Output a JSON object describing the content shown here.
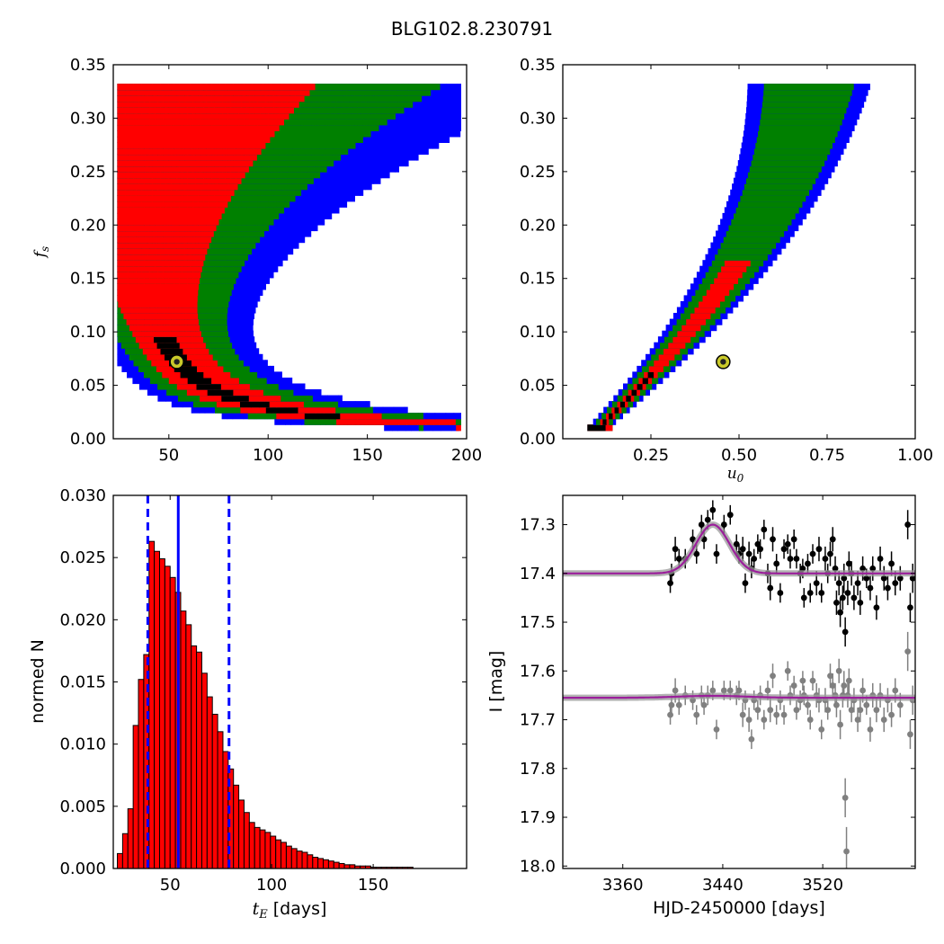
{
  "title": "BLG102.8.230791",
  "colors": {
    "blue": "#0000ff",
    "green": "#008000",
    "red": "#ff0000",
    "black": "#000000",
    "gray": "#808080",
    "model_line": "#9b1f9b",
    "best_fit_marker": "#c9c92a"
  },
  "chart_data": [
    {
      "name": "fs-vs-tE",
      "type": "heatmap",
      "ylabel": "f_s",
      "xlim": [
        22,
        200
      ],
      "ylim": [
        0,
        0.35
      ],
      "xticks": [
        "50",
        "100",
        "150",
        "200"
      ],
      "yticks": [
        "0.00",
        "0.05",
        "0.10",
        "0.15",
        "0.20",
        "0.25",
        "0.30",
        "0.35"
      ],
      "best_fit": {
        "x": 54,
        "y": 0.072
      },
      "regions": [
        "1-sigma",
        "2-sigma",
        "3-sigma",
        "outer"
      ]
    },
    {
      "name": "fs-vs-u0",
      "type": "heatmap",
      "xlabel": "u_0",
      "xlim": [
        0,
        1.0
      ],
      "ylim": [
        0,
        0.35
      ],
      "xticks": [
        "0.25",
        "0.50",
        "0.75",
        "1.00"
      ],
      "yticks": [
        "0.00",
        "0.05",
        "0.10",
        "0.15",
        "0.20",
        "0.25",
        "0.30",
        "0.35"
      ],
      "best_fit": {
        "x": 0.455,
        "y": 0.072
      },
      "regions": [
        "1-sigma",
        "2-sigma",
        "3-sigma",
        "outer"
      ]
    },
    {
      "name": "tE-histogram",
      "type": "bar",
      "xlabel": "t_E [days]",
      "ylabel": "normed N",
      "xlim": [
        22,
        196
      ],
      "ylim": [
        0,
        0.03
      ],
      "xticks": [
        "50",
        "100",
        "150"
      ],
      "yticks": [
        "0.000",
        "0.005",
        "0.010",
        "0.015",
        "0.020",
        "0.025",
        "0.030"
      ],
      "bin_width": 2.6,
      "x_start": 24,
      "values": [
        0.0012,
        0.0028,
        0.0048,
        0.0115,
        0.0152,
        0.0172,
        0.0263,
        0.0255,
        0.0249,
        0.0243,
        0.0234,
        0.0222,
        0.0207,
        0.0196,
        0.0179,
        0.0174,
        0.0157,
        0.0138,
        0.0124,
        0.011,
        0.0094,
        0.008,
        0.0067,
        0.0055,
        0.0045,
        0.0037,
        0.0033,
        0.0031,
        0.0029,
        0.0026,
        0.0023,
        0.0021,
        0.0018,
        0.0016,
        0.0014,
        0.0013,
        0.0011,
        0.0009,
        0.0008,
        0.0007,
        0.0006,
        0.0005,
        0.0004,
        0.0003,
        0.0003,
        0.0002,
        0.0002,
        0.0002,
        0.0001,
        0.0001,
        0.0001,
        0.0001,
        0.0001,
        0.0001,
        0.0001,
        0.0001
      ],
      "median": 54,
      "lower": 39,
      "upper": 79
    },
    {
      "name": "light-curve",
      "type": "scatter",
      "xlabel": "HJD-2450000 [days]",
      "ylabel": "I [mag]",
      "xlim": [
        3312,
        3594
      ],
      "ylim": [
        18.005,
        17.24
      ],
      "xticks": [
        "3360",
        "3440",
        "3520"
      ],
      "yticks": [
        "17.3",
        "17.4",
        "17.5",
        "17.6",
        "17.7",
        "17.8",
        "17.9",
        "18.0"
      ],
      "model": {
        "t0": 3432,
        "tau": 19,
        "peak": 0.1,
        "base": 17.4,
        "base2": 17.655,
        "amp2": 0.004
      },
      "series": [
        {
          "color": "black",
          "points": [
            [
              3398,
              17.42,
              0.02
            ],
            [
              3399,
              17.4,
              0.02
            ],
            [
              3402,
              17.35,
              0.025
            ],
            [
              3405,
              17.37,
              0.02
            ],
            [
              3410,
              17.37,
              0.02
            ],
            [
              3416,
              17.33,
              0.02
            ],
            [
              3419,
              17.36,
              0.02
            ],
            [
              3423,
              17.3,
              0.02
            ],
            [
              3425,
              17.33,
              0.02
            ],
            [
              3428,
              17.29,
              0.02
            ],
            [
              3432,
              17.27,
              0.02
            ],
            [
              3435,
              17.36,
              0.02
            ],
            [
              3441,
              17.3,
              0.02
            ],
            [
              3446,
              17.28,
              0.02
            ],
            [
              3451,
              17.34,
              0.02
            ],
            [
              3453,
              17.36,
              0.02
            ],
            [
              3456,
              17.35,
              0.025
            ],
            [
              3458,
              17.42,
              0.02
            ],
            [
              3461,
              17.36,
              0.025
            ],
            [
              3463,
              17.39,
              0.02
            ],
            [
              3465,
              17.37,
              0.02
            ],
            [
              3468,
              17.34,
              0.02
            ],
            [
              3470,
              17.35,
              0.02
            ],
            [
              3473,
              17.31,
              0.02
            ],
            [
              3476,
              17.4,
              0.02
            ],
            [
              3478,
              17.43,
              0.025
            ],
            [
              3480,
              17.33,
              0.025
            ],
            [
              3483,
              17.38,
              0.02
            ],
            [
              3486,
              17.44,
              0.02
            ],
            [
              3489,
              17.35,
              0.02
            ],
            [
              3492,
              17.34,
              0.02
            ],
            [
              3494,
              17.37,
              0.02
            ],
            [
              3497,
              17.33,
              0.02
            ],
            [
              3499,
              17.37,
              0.02
            ],
            [
              3502,
              17.4,
              0.02
            ],
            [
              3504,
              17.39,
              0.02
            ],
            [
              3505,
              17.45,
              0.02
            ],
            [
              3508,
              17.38,
              0.02
            ],
            [
              3510,
              17.44,
              0.02
            ],
            [
              3512,
              17.36,
              0.02
            ],
            [
              3515,
              17.42,
              0.025
            ],
            [
              3517,
              17.35,
              0.025
            ],
            [
              3519,
              17.44,
              0.02
            ],
            [
              3522,
              17.37,
              0.025
            ],
            [
              3524,
              17.4,
              0.02
            ],
            [
              3526,
              17.36,
              0.025
            ],
            [
              3528,
              17.33,
              0.025
            ],
            [
              3530,
              17.39,
              0.025
            ],
            [
              3531,
              17.46,
              0.025
            ],
            [
              3533,
              17.42,
              0.025
            ],
            [
              3534,
              17.48,
              0.03
            ],
            [
              3536,
              17.45,
              0.025
            ],
            [
              3537,
              17.41,
              0.03
            ],
            [
              3538,
              17.52,
              0.03
            ],
            [
              3540,
              17.44,
              0.025
            ],
            [
              3541,
              17.38,
              0.025
            ],
            [
              3543,
              17.4,
              0.025
            ],
            [
              3545,
              17.45,
              0.025
            ],
            [
              3548,
              17.42,
              0.025
            ],
            [
              3550,
              17.46,
              0.025
            ],
            [
              3552,
              17.39,
              0.025
            ],
            [
              3555,
              17.41,
              0.02
            ],
            [
              3558,
              17.43,
              0.025
            ],
            [
              3560,
              17.39,
              0.025
            ],
            [
              3563,
              17.47,
              0.025
            ],
            [
              3566,
              17.37,
              0.025
            ],
            [
              3569,
              17.41,
              0.025
            ],
            [
              3572,
              17.43,
              0.025
            ],
            [
              3575,
              17.38,
              0.025
            ],
            [
              3578,
              17.42,
              0.025
            ],
            [
              3582,
              17.41,
              0.025
            ],
            [
              3588,
              17.3,
              0.03
            ],
            [
              3590,
              17.47,
              0.03
            ],
            [
              3592,
              17.41,
              0.03
            ]
          ]
        },
        {
          "color": "gray",
          "points": [
            [
              3398,
              17.69,
              0.02
            ],
            [
              3399,
              17.67,
              0.02
            ],
            [
              3402,
              17.64,
              0.025
            ],
            [
              3405,
              17.67,
              0.02
            ],
            [
              3410,
              17.65,
              0.02
            ],
            [
              3416,
              17.66,
              0.02
            ],
            [
              3419,
              17.69,
              0.02
            ],
            [
              3423,
              17.65,
              0.02
            ],
            [
              3425,
              17.67,
              0.02
            ],
            [
              3428,
              17.65,
              0.02
            ],
            [
              3432,
              17.64,
              0.02
            ],
            [
              3435,
              17.72,
              0.02
            ],
            [
              3441,
              17.64,
              0.02
            ],
            [
              3446,
              17.64,
              0.02
            ],
            [
              3451,
              17.65,
              0.02
            ],
            [
              3453,
              17.64,
              0.02
            ],
            [
              3456,
              17.69,
              0.025
            ],
            [
              3458,
              17.66,
              0.02
            ],
            [
              3461,
              17.7,
              0.025
            ],
            [
              3463,
              17.74,
              0.02
            ],
            [
              3465,
              17.66,
              0.02
            ],
            [
              3468,
              17.68,
              0.02
            ],
            [
              3470,
              17.65,
              0.02
            ],
            [
              3473,
              17.7,
              0.02
            ],
            [
              3476,
              17.64,
              0.02
            ],
            [
              3478,
              17.68,
              0.025
            ],
            [
              3480,
              17.61,
              0.025
            ],
            [
              3483,
              17.69,
              0.02
            ],
            [
              3486,
              17.66,
              0.02
            ],
            [
              3489,
              17.69,
              0.02
            ],
            [
              3492,
              17.6,
              0.02
            ],
            [
              3494,
              17.65,
              0.02
            ],
            [
              3497,
              17.63,
              0.02
            ],
            [
              3499,
              17.68,
              0.02
            ],
            [
              3502,
              17.66,
              0.02
            ],
            [
              3504,
              17.62,
              0.02
            ],
            [
              3505,
              17.65,
              0.02
            ],
            [
              3508,
              17.67,
              0.02
            ],
            [
              3510,
              17.7,
              0.02
            ],
            [
              3512,
              17.62,
              0.02
            ],
            [
              3515,
              17.65,
              0.025
            ],
            [
              3517,
              17.66,
              0.025
            ],
            [
              3519,
              17.72,
              0.02
            ],
            [
              3522,
              17.66,
              0.025
            ],
            [
              3524,
              17.68,
              0.02
            ],
            [
              3526,
              17.61,
              0.025
            ],
            [
              3528,
              17.63,
              0.025
            ],
            [
              3530,
              17.65,
              0.025
            ],
            [
              3531,
              17.67,
              0.025
            ],
            [
              3533,
              17.6,
              0.025
            ],
            [
              3534,
              17.71,
              0.03
            ],
            [
              3536,
              17.65,
              0.025
            ],
            [
              3537,
              17.63,
              0.03
            ],
            [
              3538,
              17.86,
              0.04
            ],
            [
              3539,
              17.97,
              0.05
            ],
            [
              3540,
              17.65,
              0.025
            ],
            [
              3541,
              17.62,
              0.025
            ],
            [
              3543,
              17.68,
              0.025
            ],
            [
              3545,
              17.66,
              0.025
            ],
            [
              3548,
              17.7,
              0.025
            ],
            [
              3550,
              17.68,
              0.025
            ],
            [
              3552,
              17.64,
              0.025
            ],
            [
              3555,
              17.67,
              0.02
            ],
            [
              3558,
              17.72,
              0.025
            ],
            [
              3560,
              17.65,
              0.025
            ],
            [
              3563,
              17.68,
              0.025
            ],
            [
              3566,
              17.65,
              0.025
            ],
            [
              3569,
              17.7,
              0.025
            ],
            [
              3572,
              17.66,
              0.025
            ],
            [
              3575,
              17.69,
              0.025
            ],
            [
              3578,
              17.64,
              0.025
            ],
            [
              3582,
              17.67,
              0.025
            ],
            [
              3588,
              17.56,
              0.04
            ],
            [
              3590,
              17.73,
              0.03
            ],
            [
              3592,
              17.66,
              0.03
            ]
          ]
        }
      ]
    }
  ]
}
